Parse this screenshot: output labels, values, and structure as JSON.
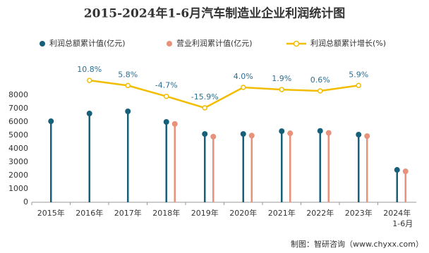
{
  "chart_data": {
    "type": "bar-line",
    "title": "2015-2024年1-6月汽车制造业企业利润统计图",
    "categories": [
      "2015年",
      "2016年",
      "2017年",
      "2018年",
      "2019年",
      "2020年",
      "2021年",
      "2022年",
      "2023年",
      "2024年\n1-6月"
    ],
    "ylim": [
      0,
      8000
    ],
    "yticks": [
      0,
      1000,
      2000,
      3000,
      4000,
      5000,
      6000,
      7000,
      8000
    ],
    "y2lim": [
      -20,
      15
    ],
    "series": [
      {
        "name": "利润总额累计值(亿元)",
        "color": "#16607a",
        "type": "lollipop",
        "values": [
          6050,
          6630,
          6790,
          6000,
          5100,
          5100,
          5310,
          5330,
          5050,
          2420
        ]
      },
      {
        "name": "营业利润累计值(亿元)",
        "color": "#e8917b",
        "type": "lollipop",
        "values": [
          null,
          null,
          null,
          5850,
          4900,
          4980,
          5150,
          5180,
          4940,
          2310
        ]
      },
      {
        "name": "利润总额累计增长(%)",
        "color": "#f2bd00",
        "type": "line",
        "axis": "y2",
        "values": [
          null,
          10.8,
          5.8,
          -4.7,
          -15.9,
          4.0,
          1.9,
          0.6,
          5.9,
          null
        ],
        "value_labels": [
          null,
          "10.8%",
          "5.8%",
          "-4.7%",
          "-15.9%",
          "4.0%",
          "1.9%",
          "0.6%",
          "5.9%",
          null
        ]
      }
    ],
    "source": "制图：智研咨询（www.chyxx.com）"
  }
}
